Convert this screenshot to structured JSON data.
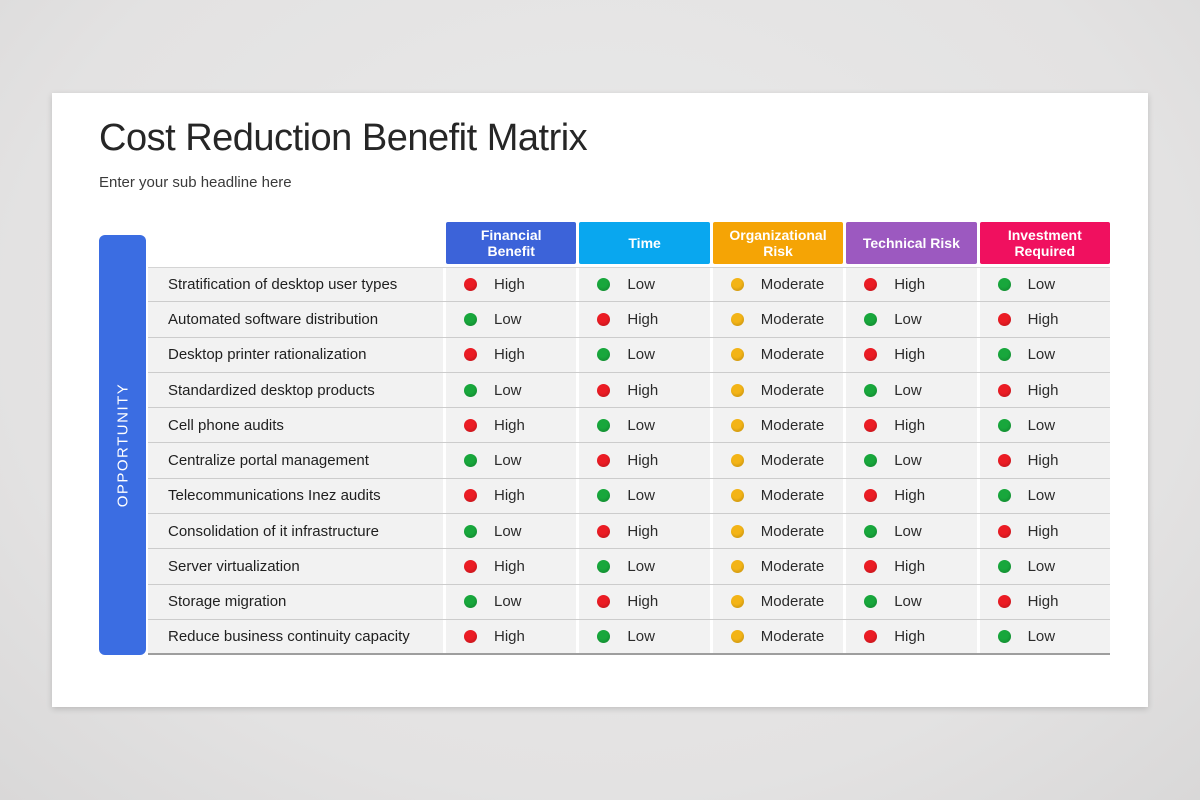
{
  "slide": {
    "title": "Cost Reduction Benefit Matrix",
    "subtitle": "Enter your sub headline here",
    "side_label": "OPPORTUNITY",
    "side_label_color": "#3b6de2",
    "card_color": "#ffffff",
    "background_color": "#e5e4e4"
  },
  "table": {
    "columns": [
      {
        "label": "Financial Benefit",
        "color": "#3c63d9"
      },
      {
        "label": "Time",
        "color": "#09a7ef"
      },
      {
        "label": "Organizational Risk",
        "color": "#f5a405"
      },
      {
        "label": "Technical Risk",
        "color": "#9c59c0"
      },
      {
        "label": "Investment Required",
        "color": "#f0105f"
      }
    ],
    "dot_colors": {
      "red": "#eb1c24",
      "green": "#18a73c",
      "amber": "#f3b417"
    },
    "rows": [
      {
        "label": "Stratification of desktop user types",
        "values": [
          {
            "level": "High",
            "color": "red"
          },
          {
            "level": "Low",
            "color": "green"
          },
          {
            "level": "Moderate",
            "color": "amber"
          },
          {
            "level": "High",
            "color": "red"
          },
          {
            "level": "Low",
            "color": "green"
          }
        ]
      },
      {
        "label": "Automated software distribution",
        "values": [
          {
            "level": "Low",
            "color": "green"
          },
          {
            "level": "High",
            "color": "red"
          },
          {
            "level": "Moderate",
            "color": "amber"
          },
          {
            "level": "Low",
            "color": "green"
          },
          {
            "level": "High",
            "color": "red"
          }
        ]
      },
      {
        "label": "Desktop printer rationalization",
        "values": [
          {
            "level": "High",
            "color": "red"
          },
          {
            "level": "Low",
            "color": "green"
          },
          {
            "level": "Moderate",
            "color": "amber"
          },
          {
            "level": "High",
            "color": "red"
          },
          {
            "level": "Low",
            "color": "green"
          }
        ]
      },
      {
        "label": "Standardized desktop products",
        "values": [
          {
            "level": "Low",
            "color": "green"
          },
          {
            "level": "High",
            "color": "red"
          },
          {
            "level": "Moderate",
            "color": "amber"
          },
          {
            "level": "Low",
            "color": "green"
          },
          {
            "level": "High",
            "color": "red"
          }
        ]
      },
      {
        "label": "Cell phone audits",
        "values": [
          {
            "level": "High",
            "color": "red"
          },
          {
            "level": "Low",
            "color": "green"
          },
          {
            "level": "Moderate",
            "color": "amber"
          },
          {
            "level": "High",
            "color": "red"
          },
          {
            "level": "Low",
            "color": "green"
          }
        ]
      },
      {
        "label": "Centralize portal management",
        "values": [
          {
            "level": "Low",
            "color": "green"
          },
          {
            "level": "High",
            "color": "red"
          },
          {
            "level": "Moderate",
            "color": "amber"
          },
          {
            "level": "Low",
            "color": "green"
          },
          {
            "level": "High",
            "color": "red"
          }
        ]
      },
      {
        "label": "Telecommunications Inez audits",
        "values": [
          {
            "level": "High",
            "color": "red"
          },
          {
            "level": "Low",
            "color": "green"
          },
          {
            "level": "Moderate",
            "color": "amber"
          },
          {
            "level": "High",
            "color": "red"
          },
          {
            "level": "Low",
            "color": "green"
          }
        ]
      },
      {
        "label": "Consolidation of it infrastructure",
        "values": [
          {
            "level": "Low",
            "color": "green"
          },
          {
            "level": "High",
            "color": "red"
          },
          {
            "level": "Moderate",
            "color": "amber"
          },
          {
            "level": "Low",
            "color": "green"
          },
          {
            "level": "High",
            "color": "red"
          }
        ]
      },
      {
        "label": "Server virtualization",
        "values": [
          {
            "level": "High",
            "color": "red"
          },
          {
            "level": "Low",
            "color": "green"
          },
          {
            "level": "Moderate",
            "color": "amber"
          },
          {
            "level": "High",
            "color": "red"
          },
          {
            "level": "Low",
            "color": "green"
          }
        ]
      },
      {
        "label": "Storage migration",
        "values": [
          {
            "level": "Low",
            "color": "green"
          },
          {
            "level": "High",
            "color": "red"
          },
          {
            "level": "Moderate",
            "color": "amber"
          },
          {
            "level": "Low",
            "color": "green"
          },
          {
            "level": "High",
            "color": "red"
          }
        ]
      },
      {
        "label": "Reduce business continuity capacity",
        "values": [
          {
            "level": "High",
            "color": "red"
          },
          {
            "level": "Low",
            "color": "green"
          },
          {
            "level": "Moderate",
            "color": "amber"
          },
          {
            "level": "High",
            "color": "red"
          },
          {
            "level": "Low",
            "color": "green"
          }
        ]
      }
    ]
  }
}
